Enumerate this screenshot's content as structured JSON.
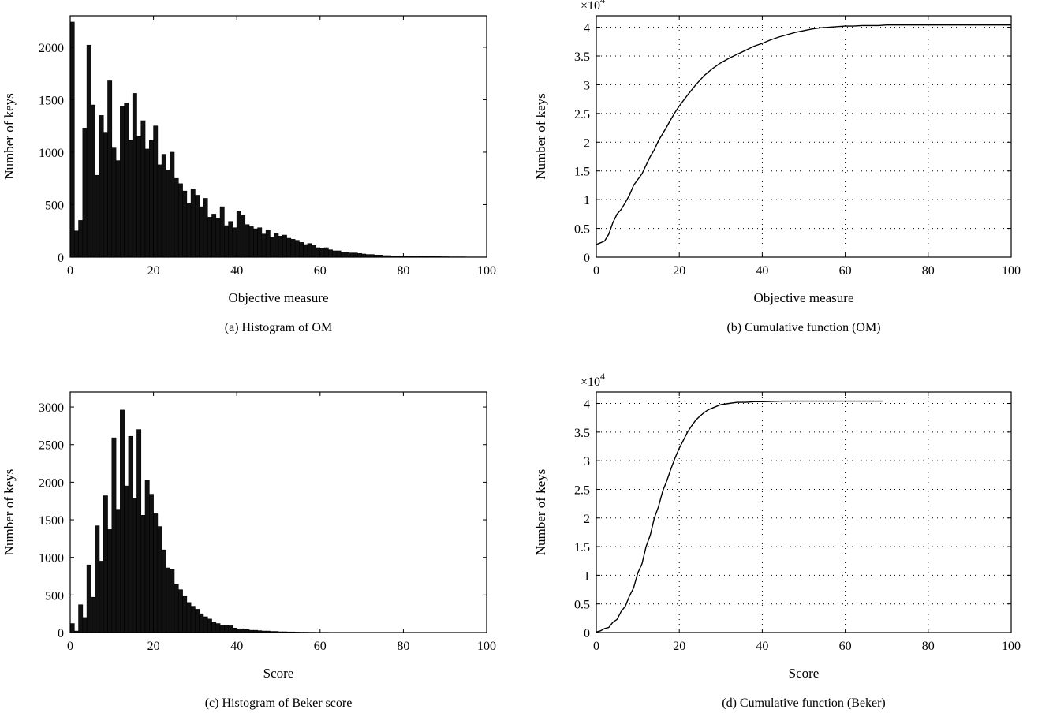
{
  "chart_data": [
    {
      "id": "a",
      "type": "bar",
      "caption": "(a)  Histogram of OM",
      "xlabel": "Objective measure",
      "ylabel": "Number of keys",
      "xlim": [
        0,
        100
      ],
      "ylim": [
        0,
        2300
      ],
      "xticks": [
        0,
        20,
        40,
        60,
        80,
        100
      ],
      "yticks": [
        0,
        500,
        1000,
        1500,
        2000
      ],
      "ytick_labels": [
        "0",
        "500",
        "1000",
        "1500",
        "2000"
      ],
      "grid": false,
      "bin_width": 1,
      "x": [
        0,
        1,
        2,
        3,
        4,
        5,
        6,
        7,
        8,
        9,
        10,
        11,
        12,
        13,
        14,
        15,
        16,
        17,
        18,
        19,
        20,
        21,
        22,
        23,
        24,
        25,
        26,
        27,
        28,
        29,
        30,
        31,
        32,
        33,
        34,
        35,
        36,
        37,
        38,
        39,
        40,
        41,
        42,
        43,
        44,
        45,
        46,
        47,
        48,
        49,
        50,
        51,
        52,
        53,
        54,
        55,
        56,
        57,
        58,
        59,
        60,
        61,
        62,
        63,
        64,
        65,
        66,
        67,
        68,
        69,
        70,
        71,
        72,
        73,
        74,
        75,
        76,
        77,
        78,
        79,
        80,
        81,
        82,
        83,
        84,
        85,
        86,
        87,
        88,
        89,
        90,
        91,
        92,
        93,
        94,
        95,
        96,
        97,
        98,
        99
      ],
      "values": [
        2240,
        250,
        350,
        1230,
        2020,
        1450,
        780,
        1350,
        1190,
        1680,
        1040,
        920,
        1440,
        1470,
        1110,
        1560,
        1150,
        1300,
        1030,
        1110,
        1250,
        880,
        980,
        830,
        1000,
        750,
        700,
        630,
        510,
        650,
        590,
        480,
        560,
        380,
        410,
        370,
        480,
        300,
        340,
        280,
        440,
        400,
        310,
        290,
        270,
        280,
        220,
        260,
        190,
        230,
        200,
        210,
        180,
        170,
        160,
        140,
        120,
        130,
        110,
        90,
        80,
        90,
        70,
        60,
        60,
        50,
        50,
        40,
        40,
        35,
        30,
        25,
        25,
        20,
        20,
        15,
        15,
        12,
        12,
        10,
        10,
        8,
        8,
        7,
        6,
        6,
        5,
        5,
        5,
        4,
        4,
        3,
        3,
        3,
        3,
        2,
        2,
        2,
        2,
        2
      ]
    },
    {
      "id": "b",
      "type": "line",
      "caption": "(b)  Cumulative function (OM)",
      "xlabel": "Objective measure",
      "ylabel": "Number of keys",
      "multiplier": "×10",
      "multiplier_exp": "4",
      "xlim": [
        0,
        100
      ],
      "ylim": [
        0,
        4.2
      ],
      "xticks": [
        0,
        20,
        40,
        60,
        80,
        100
      ],
      "yticks": [
        0,
        0.5,
        1,
        1.5,
        2,
        2.5,
        3,
        3.5,
        4
      ],
      "ytick_labels": [
        "0",
        "0.5",
        "1",
        "1.5",
        "2",
        "2.5",
        "3",
        "3.5",
        "4"
      ],
      "grid": true,
      "x": [
        0,
        1,
        2,
        3,
        4,
        5,
        6,
        7,
        8,
        9,
        10,
        11,
        12,
        13,
        14,
        15,
        16,
        17,
        18,
        19,
        20,
        22,
        24,
        26,
        28,
        30,
        32,
        34,
        36,
        38,
        40,
        42,
        44,
        46,
        48,
        50,
        52,
        54,
        56,
        58,
        60,
        62,
        64,
        66,
        68,
        70,
        75,
        80,
        85,
        90,
        95,
        100
      ],
      "y": [
        0.22,
        0.25,
        0.28,
        0.4,
        0.6,
        0.75,
        0.83,
        0.95,
        1.08,
        1.25,
        1.35,
        1.45,
        1.6,
        1.75,
        1.87,
        2.03,
        2.15,
        2.27,
        2.4,
        2.52,
        2.63,
        2.82,
        3.0,
        3.16,
        3.28,
        3.38,
        3.46,
        3.53,
        3.6,
        3.67,
        3.72,
        3.78,
        3.83,
        3.87,
        3.91,
        3.94,
        3.97,
        3.99,
        4.0,
        4.01,
        4.02,
        4.02,
        4.03,
        4.03,
        4.03,
        4.04,
        4.04,
        4.04,
        4.04,
        4.04,
        4.04,
        4.04
      ]
    },
    {
      "id": "c",
      "type": "bar",
      "caption": "(c)  Histogram of Beker score",
      "xlabel": "Score",
      "ylabel": "Number of keys",
      "xlim": [
        0,
        100
      ],
      "ylim": [
        0,
        3200
      ],
      "xticks": [
        0,
        20,
        40,
        60,
        80,
        100
      ],
      "yticks": [
        0,
        500,
        1000,
        1500,
        2000,
        2500,
        3000
      ],
      "ytick_labels": [
        "0",
        "500",
        "1000",
        "1500",
        "2000",
        "2500",
        "3000"
      ],
      "grid": false,
      "bin_width": 1,
      "x": [
        0,
        1,
        2,
        3,
        4,
        5,
        6,
        7,
        8,
        9,
        10,
        11,
        12,
        13,
        14,
        15,
        16,
        17,
        18,
        19,
        20,
        21,
        22,
        23,
        24,
        25,
        26,
        27,
        28,
        29,
        30,
        31,
        32,
        33,
        34,
        35,
        36,
        37,
        38,
        39,
        40,
        41,
        42,
        43,
        44,
        45,
        46,
        47,
        48,
        49,
        50,
        51,
        52,
        53,
        54,
        55,
        56,
        57,
        58,
        59,
        60,
        61,
        62,
        63,
        64,
        65,
        66,
        67,
        68,
        69,
        70,
        71,
        72,
        73,
        74,
        75,
        76,
        77,
        78,
        79,
        80,
        81,
        82,
        83,
        84,
        85,
        86,
        87,
        88,
        89,
        90,
        91,
        92,
        93,
        94,
        95,
        96,
        97,
        98,
        99
      ],
      "values": [
        120,
        20,
        370,
        200,
        900,
        470,
        1420,
        950,
        1820,
        1370,
        2590,
        1640,
        2960,
        1950,
        2610,
        1790,
        2700,
        1560,
        2030,
        1840,
        1580,
        1410,
        1100,
        860,
        840,
        640,
        570,
        480,
        400,
        350,
        310,
        250,
        210,
        180,
        140,
        120,
        100,
        100,
        90,
        60,
        50,
        50,
        40,
        30,
        30,
        25,
        20,
        20,
        15,
        15,
        10,
        10,
        8,
        8,
        6,
        5,
        5,
        4,
        4,
        3,
        3,
        3,
        2,
        2,
        2,
        2,
        2,
        1,
        1,
        1,
        1,
        1,
        1,
        1,
        1,
        1,
        1,
        1,
        1,
        1,
        1,
        1,
        1,
        1,
        1,
        1,
        1,
        1,
        1,
        1,
        1,
        1,
        1,
        1,
        1,
        1,
        1,
        1,
        1,
        1
      ]
    },
    {
      "id": "d",
      "type": "line",
      "caption": "(d)  Cumulative function (Beker)",
      "xlabel": "Score",
      "ylabel": "Number of keys",
      "multiplier": "×10",
      "multiplier_exp": "4",
      "xlim": [
        0,
        100
      ],
      "ylim": [
        0,
        4.2
      ],
      "xticks": [
        0,
        20,
        40,
        60,
        80,
        100
      ],
      "yticks": [
        0,
        0.5,
        1,
        1.5,
        2,
        2.5,
        3,
        3.5,
        4
      ],
      "ytick_labels": [
        "0",
        "0.5",
        "1",
        "1.5",
        "2",
        "2.5",
        "3",
        "3.5",
        "4"
      ],
      "grid": true,
      "x": [
        0,
        1,
        2,
        3,
        4,
        5,
        6,
        7,
        8,
        9,
        10,
        11,
        12,
        13,
        14,
        15,
        16,
        17,
        18,
        19,
        20,
        21,
        22,
        23,
        24,
        25,
        26,
        27,
        28,
        29,
        30,
        32,
        34,
        36,
        38,
        40,
        45,
        50,
        55,
        60,
        65,
        69
      ],
      "y": [
        0.01,
        0.03,
        0.07,
        0.09,
        0.18,
        0.23,
        0.37,
        0.46,
        0.64,
        0.78,
        1.04,
        1.2,
        1.5,
        1.7,
        2.0,
        2.2,
        2.47,
        2.65,
        2.86,
        3.05,
        3.22,
        3.36,
        3.5,
        3.61,
        3.71,
        3.78,
        3.84,
        3.89,
        3.92,
        3.95,
        3.98,
        4.0,
        4.02,
        4.02,
        4.03,
        4.03,
        4.04,
        4.04,
        4.04,
        4.04,
        4.04,
        4.04
      ]
    }
  ]
}
